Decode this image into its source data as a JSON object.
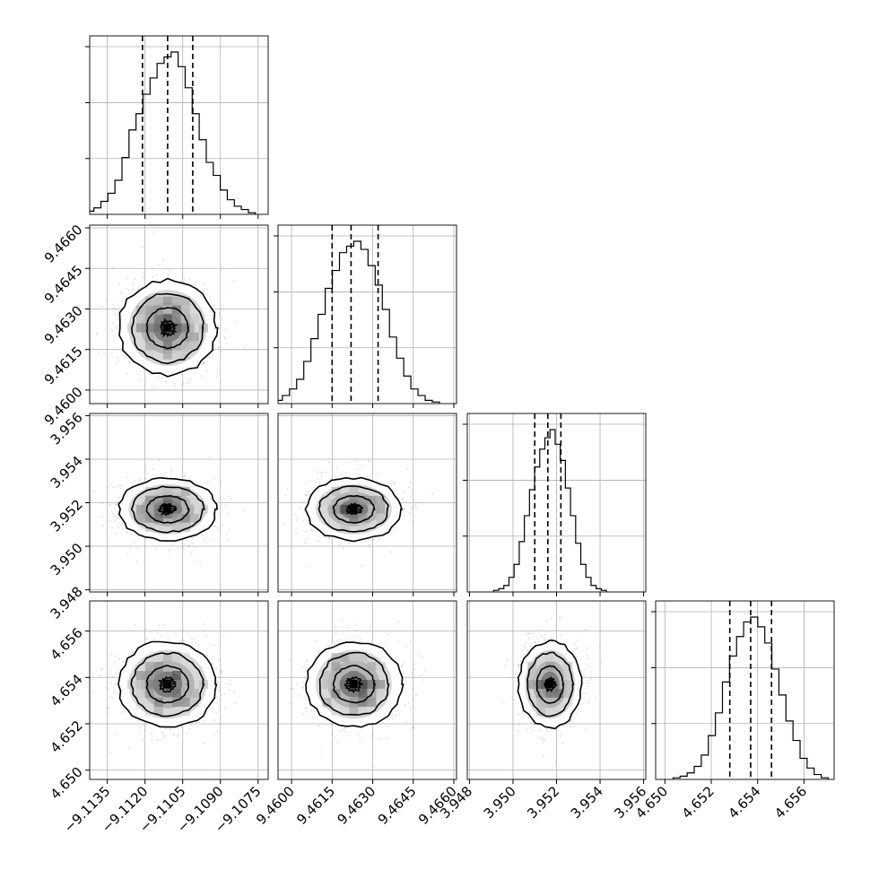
{
  "chart_data": {
    "type": "corner",
    "parameters": 4,
    "axes": [
      {
        "range": [
          -9.1142,
          -9.1071
        ],
        "ticks": [
          -9.1135,
          -9.112,
          -9.1105,
          -9.109,
          -9.1075
        ],
        "tick_labels": [
          "−9.1135",
          "−9.1120",
          "−9.1105",
          "−9.1090",
          "−9.1075"
        ],
        "quantiles": [
          -9.1121,
          -9.1111,
          -9.1101
        ],
        "center": -9.1111,
        "sigma": 0.00097
      },
      {
        "range": [
          9.4595,
          9.4661
        ],
        "ticks": [
          9.46,
          9.4615,
          9.463,
          9.4645,
          9.466
        ],
        "tick_labels": [
          "9.4600",
          "9.4615",
          "9.4630",
          "9.4645",
          "9.4660"
        ],
        "quantiles": [
          9.4615,
          9.4622,
          9.4632
        ],
        "center": 9.4623,
        "sigma": 0.00088
      },
      {
        "range": [
          3.9479,
          3.9561
        ],
        "ticks": [
          3.948,
          3.95,
          3.952,
          3.954,
          3.956
        ],
        "tick_labels": [
          "3.948",
          "3.950",
          "3.952",
          "3.954",
          "3.956"
        ],
        "quantiles": [
          3.951,
          3.9516,
          3.9522
        ],
        "center": 3.9517,
        "sigma": 0.00072
      },
      {
        "range": [
          4.6496,
          4.6573
        ],
        "ticks": [
          4.65,
          4.652,
          4.654,
          4.656
        ],
        "tick_labels": [
          "4.650",
          "4.652",
          "4.654",
          "4.656"
        ],
        "quantiles": [
          4.6528,
          4.6537,
          4.6546
        ],
        "center": 4.6537,
        "sigma": 0.00093
      }
    ],
    "histograms": [
      [
        0.01,
        0.02,
        0.04,
        0.08,
        0.13,
        0.21,
        0.35,
        0.52,
        0.62,
        0.74,
        0.84,
        0.93,
        0.97,
        1.0,
        0.91,
        0.78,
        0.62,
        0.46,
        0.32,
        0.24,
        0.15,
        0.09,
        0.05,
        0.03,
        0.01
      ],
      [
        0.01,
        0.02,
        0.05,
        0.09,
        0.15,
        0.26,
        0.4,
        0.55,
        0.71,
        0.82,
        0.93,
        0.97,
        1.0,
        0.95,
        0.85,
        0.73,
        0.58,
        0.41,
        0.28,
        0.17,
        0.09,
        0.05,
        0.02,
        0.01
      ],
      [
        0.01,
        0.02,
        0.04,
        0.09,
        0.17,
        0.31,
        0.47,
        0.63,
        0.77,
        0.88,
        0.95,
        1.0,
        0.91,
        0.81,
        0.64,
        0.47,
        0.3,
        0.17,
        0.09,
        0.04,
        0.02,
        0.01
      ],
      [
        0.01,
        0.02,
        0.04,
        0.08,
        0.15,
        0.27,
        0.41,
        0.6,
        0.76,
        0.88,
        0.97,
        1.0,
        0.94,
        0.84,
        0.68,
        0.52,
        0.36,
        0.24,
        0.13,
        0.07,
        0.03,
        0.01
      ]
    ],
    "contour_levels": 3,
    "grid": true,
    "colors": {
      "line": "#000000",
      "density": "#000000",
      "grid": "#b0b0b0",
      "scatter": "#8c8c8c"
    }
  }
}
